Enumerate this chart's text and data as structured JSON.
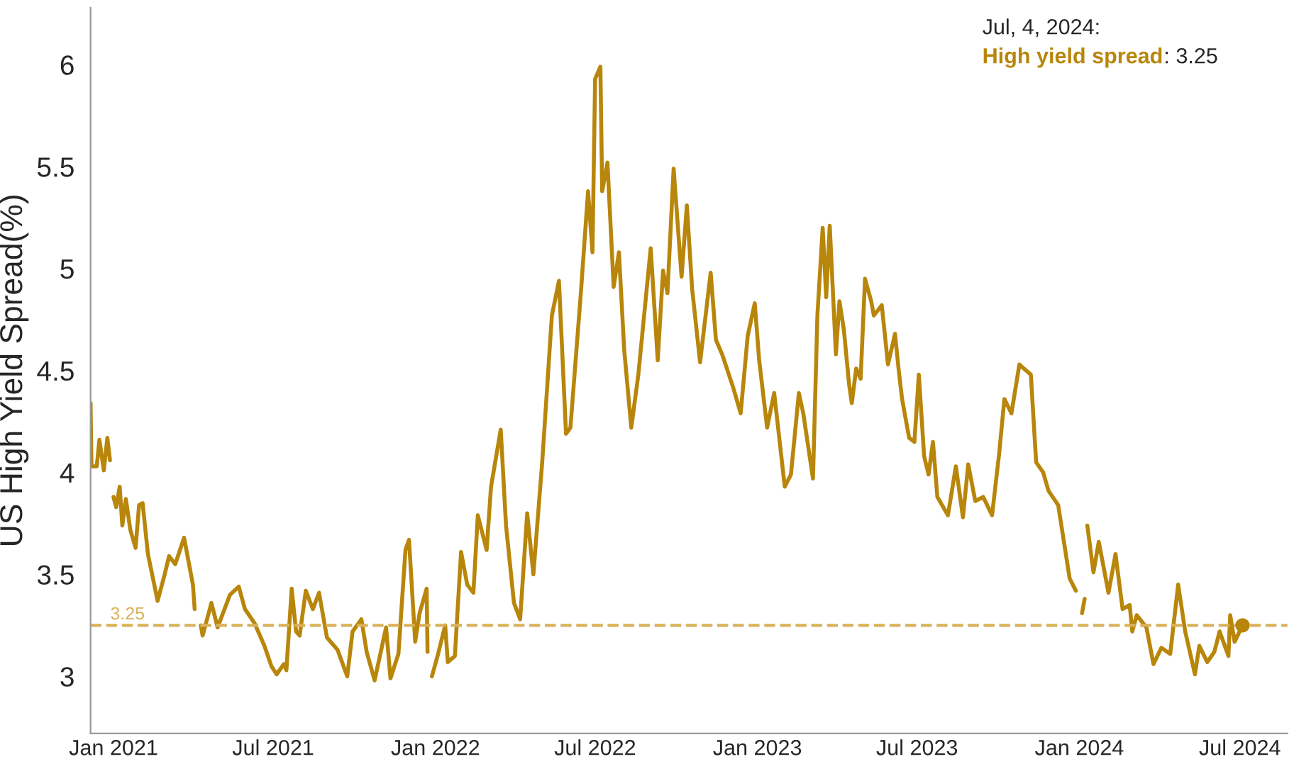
{
  "chart_data": {
    "type": "line",
    "ylabel": "US High Yield Spread(%)",
    "legend": "top right",
    "annotations": [
      "Jul, 4, 2024:",
      ": 3.25"
    ],
    "ref_lines": [
      {
        "axis": "y",
        "value": 3.25,
        "label": "3.25",
        "color": "#d9b25a",
        "line_style": "dashed"
      }
    ],
    "xlim": [
      "2020-12-06",
      "2024-08-24"
    ],
    "xticks": [
      {
        "value": "2021-01-01",
        "label": "Jan 2021"
      },
      {
        "value": "2021-07-01",
        "label": "Jul 2021"
      },
      {
        "value": "2022-01-01",
        "label": "Jan 2022"
      },
      {
        "value": "2022-07-01",
        "label": "Jul 2022"
      },
      {
        "value": "2023-01-01",
        "label": "Jan 2023"
      },
      {
        "value": "2023-07-01",
        "label": "Jul 2023"
      },
      {
        "value": "2024-01-01",
        "label": "Jan 2024"
      },
      {
        "value": "2024-07-01",
        "label": "Jul 2024"
      }
    ],
    "ylim": [
      2.72,
      6.28
    ],
    "yticks": [
      3,
      3.5,
      4,
      4.5,
      5,
      5.5,
      6
    ],
    "grid": false,
    "marker": "none",
    "line_style": "solid",
    "series": [
      {
        "name": "High yield spread",
        "color": "#b8860b",
        "x": [
          "2020-12-06",
          "2020-12-07",
          "2020-12-13",
          "2020-12-16",
          "2020-12-21",
          "2020-12-25",
          "2020-12-28",
          "2020-12-30",
          "2021-01-01",
          "2021-01-04",
          "2021-01-08",
          "2021-01-11",
          "2021-01-15",
          "2021-01-20",
          "2021-01-26",
          "2021-01-30",
          "2021-02-03",
          "2021-02-09",
          "2021-02-20",
          "2021-02-28",
          "2021-03-05",
          "2021-03-12",
          "2021-03-22",
          "2021-04-01",
          "2021-04-03",
          "2021-04-06",
          "2021-04-10",
          "2021-04-12",
          "2021-04-22",
          "2021-04-29",
          "2021-05-13",
          "2021-05-23",
          "2021-05-30",
          "2021-06-10",
          "2021-06-21",
          "2021-06-29",
          "2021-07-05",
          "2021-07-13",
          "2021-07-16",
          "2021-07-22",
          "2021-07-27",
          "2021-07-31",
          "2021-08-07",
          "2021-08-15",
          "2021-08-22",
          "2021-08-31",
          "2021-09-12",
          "2021-09-23",
          "2021-09-29",
          "2021-10-09",
          "2021-10-15",
          "2021-10-24",
          "2021-11-06",
          "2021-11-11",
          "2021-11-20",
          "2021-11-28",
          "2021-12-02",
          "2021-12-09",
          "2021-12-14",
          "2021-12-22",
          "2021-12-23",
          "2021-12-25",
          "2021-12-28",
          "2022-01-04",
          "2022-01-12",
          "2022-01-15",
          "2022-01-23",
          "2022-01-30",
          "2022-02-06",
          "2022-02-13",
          "2022-02-18",
          "2022-02-28",
          "2022-03-05",
          "2022-03-16",
          "2022-03-22",
          "2022-03-31",
          "2022-04-07",
          "2022-04-15",
          "2022-04-22",
          "2022-05-02",
          "2022-05-13",
          "2022-05-21",
          "2022-05-29",
          "2022-06-03",
          "2022-06-15",
          "2022-06-23",
          "2022-06-28",
          "2022-07-01",
          "2022-07-07",
          "2022-07-09",
          "2022-07-15",
          "2022-07-22",
          "2022-07-28",
          "2022-08-03",
          "2022-08-11",
          "2022-08-19",
          "2022-09-02",
          "2022-09-10",
          "2022-09-16",
          "2022-09-21",
          "2022-09-28",
          "2022-10-07",
          "2022-10-13",
          "2022-10-19",
          "2022-10-28",
          "2022-11-09",
          "2022-11-15",
          "2022-11-22",
          "2022-12-05",
          "2022-12-13",
          "2022-12-21",
          "2022-12-29",
          "2023-01-03",
          "2023-01-12",
          "2023-01-20",
          "2023-02-01",
          "2023-02-08",
          "2023-02-17",
          "2023-02-22",
          "2023-03-05",
          "2023-03-10",
          "2023-03-16",
          "2023-03-20",
          "2023-03-24",
          "2023-03-31",
          "2023-04-04",
          "2023-04-09",
          "2023-04-15",
          "2023-04-18",
          "2023-04-23",
          "2023-04-28",
          "2023-05-03",
          "2023-05-10",
          "2023-05-13",
          "2023-05-22",
          "2023-05-29",
          "2023-06-06",
          "2023-06-10",
          "2023-06-14",
          "2023-06-22",
          "2023-06-28",
          "2023-07-03",
          "2023-07-09",
          "2023-07-14",
          "2023-07-19",
          "2023-07-24",
          "2023-08-05",
          "2023-08-14",
          "2023-08-22",
          "2023-08-28",
          "2023-09-05",
          "2023-09-14",
          "2023-09-24",
          "2023-10-02",
          "2023-10-08",
          "2023-10-16",
          "2023-10-25",
          "2023-10-30",
          "2023-11-07",
          "2023-11-13",
          "2023-11-21",
          "2023-11-27",
          "2023-12-08",
          "2023-12-21",
          "2023-12-28",
          "2023-12-31",
          "2024-01-04",
          "2024-01-07",
          "2024-01-08",
          "2024-01-10",
          "2024-01-17",
          "2024-01-23",
          "2024-02-03",
          "2024-02-11",
          "2024-02-19",
          "2024-02-27",
          "2024-03-01",
          "2024-03-06",
          "2024-03-17",
          "2024-03-25",
          "2024-04-03",
          "2024-04-13",
          "2024-04-22",
          "2024-04-30",
          "2024-05-11",
          "2024-05-16",
          "2024-05-25",
          "2024-06-02",
          "2024-06-08",
          "2024-06-18",
          "2024-06-20",
          "2024-06-25",
          "2024-07-04"
        ],
        "values": [
          4.34,
          4.03,
          4.03,
          4.16,
          4.01,
          4.17,
          4.06,
          null,
          3.88,
          3.83,
          3.93,
          3.74,
          3.87,
          3.72,
          3.63,
          3.84,
          3.85,
          3.6,
          3.37,
          3.5,
          3.59,
          3.55,
          3.68,
          3.45,
          3.33,
          null,
          3.25,
          3.2,
          3.36,
          3.24,
          3.4,
          3.44,
          3.33,
          3.26,
          3.15,
          3.05,
          3.01,
          3.06,
          3.03,
          3.43,
          3.22,
          3.2,
          3.42,
          3.33,
          3.41,
          3.19,
          3.13,
          3.0,
          3.22,
          3.28,
          3.12,
          2.98,
          3.24,
          2.99,
          3.11,
          3.62,
          3.67,
          3.17,
          3.31,
          3.43,
          3.12,
          null,
          3.0,
          3.11,
          3.25,
          3.07,
          3.1,
          3.61,
          3.45,
          3.41,
          3.79,
          3.62,
          3.93,
          4.21,
          3.74,
          3.36,
          3.28,
          3.8,
          3.5,
          4.05,
          4.77,
          4.94,
          4.19,
          4.22,
          4.89,
          5.38,
          5.08,
          5.93,
          5.99,
          5.38,
          5.52,
          4.91,
          5.08,
          4.6,
          4.22,
          4.48,
          5.1,
          4.55,
          4.99,
          4.88,
          5.49,
          4.96,
          5.31,
          4.9,
          4.54,
          4.98,
          4.65,
          4.58,
          4.41,
          4.29,
          4.67,
          4.83,
          4.55,
          4.22,
          4.39,
          3.93,
          3.99,
          4.39,
          4.29,
          3.97,
          4.77,
          5.2,
          4.86,
          5.21,
          4.58,
          4.84,
          4.7,
          4.43,
          4.34,
          4.51,
          4.46,
          4.95,
          4.84,
          4.77,
          4.82,
          4.53,
          4.68,
          4.51,
          4.36,
          4.17,
          4.15,
          4.48,
          4.08,
          3.99,
          4.15,
          3.88,
          3.79,
          4.03,
          3.78,
          4.04,
          3.86,
          3.88,
          3.79,
          4.09,
          4.36,
          4.29,
          4.53,
          4.51,
          4.48,
          4.05,
          4.0,
          3.91,
          3.84,
          3.48,
          3.42,
          null,
          3.31,
          3.38,
          null,
          3.74,
          3.51,
          3.66,
          3.41,
          3.6,
          3.33,
          3.35,
          3.22,
          3.3,
          3.24,
          3.06,
          3.14,
          3.11,
          3.45,
          3.22,
          3.01,
          3.15,
          3.07,
          3.12,
          3.22,
          3.1,
          3.3,
          3.17,
          3.25
        ]
      },
      {
        "type": "scatter",
        "color": "#b8860b",
        "x": [
          "2024-07-04"
        ],
        "values": [
          3.25
        ],
        "marker": "circle"
      }
    ]
  }
}
